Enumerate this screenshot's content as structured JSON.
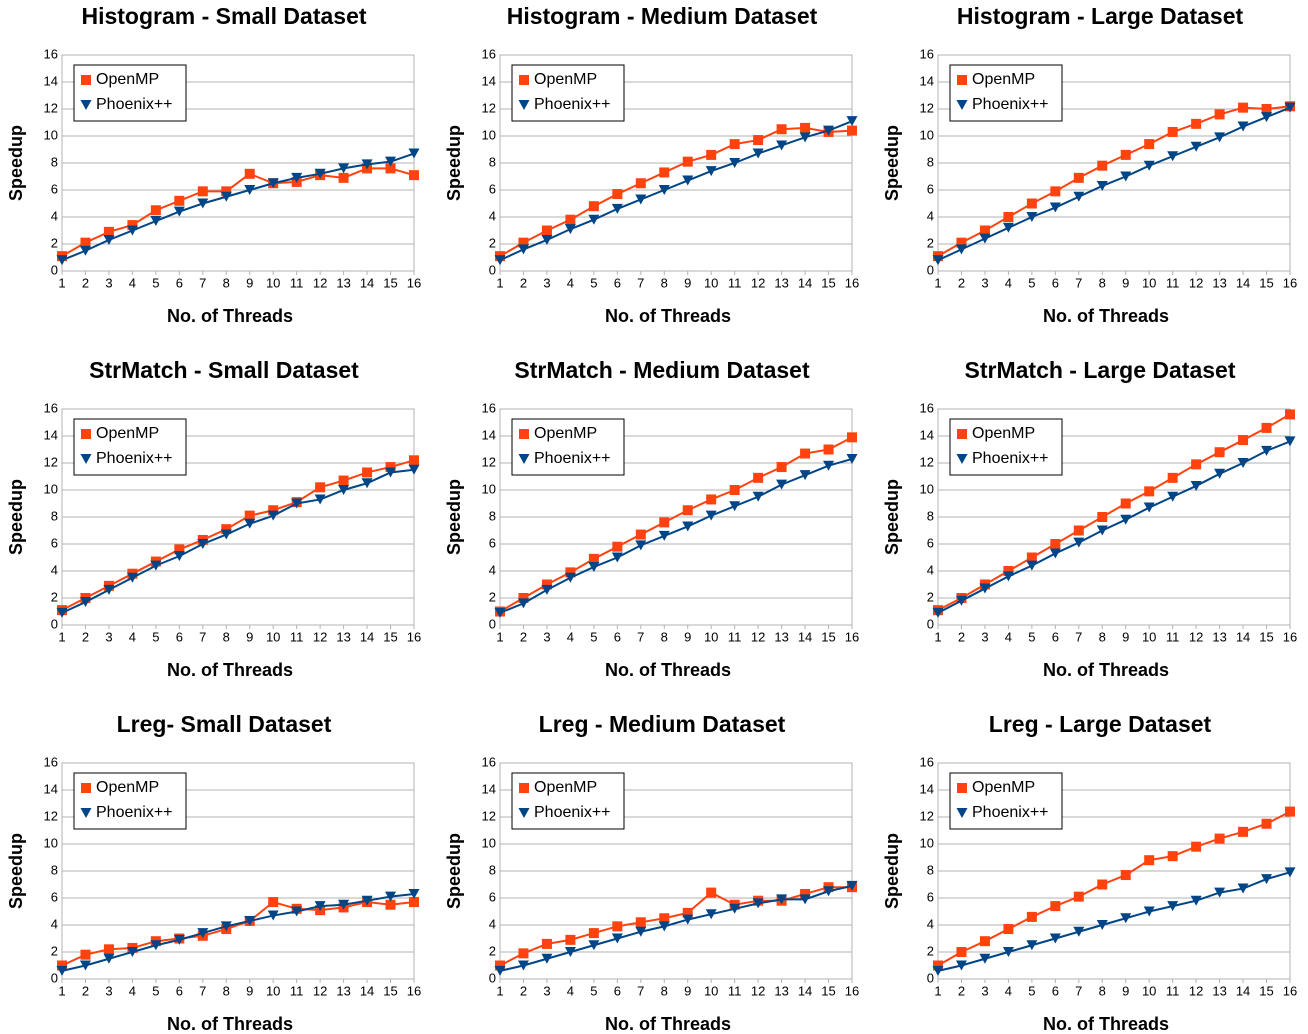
{
  "chart_data": [
    {
      "type": "line",
      "title": "Histogram - Small Dataset",
      "xlabel": "No. of Threads",
      "ylabel": "Speedup",
      "x": [
        1,
        2,
        3,
        4,
        5,
        6,
        7,
        8,
        9,
        10,
        11,
        12,
        13,
        14,
        15,
        16
      ],
      "xlim": [
        1,
        16
      ],
      "xticks": [
        1,
        2,
        3,
        4,
        5,
        6,
        7,
        8,
        9,
        10,
        11,
        12,
        13,
        14,
        15,
        16
      ],
      "ylim": [
        0,
        16
      ],
      "yticks": [
        0,
        2,
        4,
        6,
        8,
        10,
        12,
        14,
        16
      ],
      "grid": true,
      "legend": "upper left",
      "series": [
        {
          "name": "OpenMP",
          "color": "#ff420e",
          "marker": "square",
          "values": [
            1.1,
            2.1,
            2.9,
            3.4,
            4.5,
            5.2,
            5.9,
            5.9,
            7.2,
            6.5,
            6.6,
            7.1,
            6.9,
            7.6,
            7.6,
            7.1
          ]
        },
        {
          "name": "Phoenix++",
          "color": "#004586",
          "marker": "triangle-down",
          "values": [
            0.8,
            1.5,
            2.3,
            3.0,
            3.7,
            4.4,
            5.0,
            5.5,
            6.0,
            6.5,
            6.9,
            7.2,
            7.6,
            7.9,
            8.1,
            8.7
          ]
        }
      ]
    },
    {
      "type": "line",
      "title": "Histogram - Medium Dataset",
      "xlabel": "No. of Threads",
      "ylabel": "Speedup",
      "x": [
        1,
        2,
        3,
        4,
        5,
        6,
        7,
        8,
        9,
        10,
        11,
        12,
        13,
        14,
        15,
        16
      ],
      "xlim": [
        1,
        16
      ],
      "xticks": [
        1,
        2,
        3,
        4,
        5,
        6,
        7,
        8,
        9,
        10,
        11,
        12,
        13,
        14,
        15,
        16
      ],
      "ylim": [
        0,
        16
      ],
      "yticks": [
        0,
        2,
        4,
        6,
        8,
        10,
        12,
        14,
        16
      ],
      "grid": true,
      "legend": "upper left",
      "series": [
        {
          "name": "OpenMP",
          "color": "#ff420e",
          "marker": "square",
          "values": [
            1.1,
            2.1,
            3.0,
            3.8,
            4.8,
            5.7,
            6.5,
            7.3,
            8.1,
            8.6,
            9.4,
            9.7,
            10.5,
            10.6,
            10.3,
            10.4
          ]
        },
        {
          "name": "Phoenix++",
          "color": "#004586",
          "marker": "triangle-down",
          "values": [
            0.8,
            1.6,
            2.3,
            3.1,
            3.8,
            4.6,
            5.3,
            6.0,
            6.7,
            7.4,
            8.0,
            8.7,
            9.3,
            9.9,
            10.4,
            11.1
          ]
        }
      ]
    },
    {
      "type": "line",
      "title": "Histogram - Large Dataset",
      "xlabel": "No. of Threads",
      "ylabel": "Speedup",
      "x": [
        1,
        2,
        3,
        4,
        5,
        6,
        7,
        8,
        9,
        10,
        11,
        12,
        13,
        14,
        15,
        16
      ],
      "xlim": [
        1,
        16
      ],
      "xticks": [
        1,
        2,
        3,
        4,
        5,
        6,
        7,
        8,
        9,
        10,
        11,
        12,
        13,
        14,
        15,
        16
      ],
      "ylim": [
        0,
        16
      ],
      "yticks": [
        0,
        2,
        4,
        6,
        8,
        10,
        12,
        14,
        16
      ],
      "grid": true,
      "legend": "upper left",
      "series": [
        {
          "name": "OpenMP",
          "color": "#ff420e",
          "marker": "square",
          "values": [
            1.1,
            2.1,
            3.0,
            4.0,
            5.0,
            5.9,
            6.9,
            7.8,
            8.6,
            9.4,
            10.3,
            10.9,
            11.6,
            12.1,
            12.0,
            12.2
          ]
        },
        {
          "name": "Phoenix++",
          "color": "#004586",
          "marker": "triangle-down",
          "values": [
            0.8,
            1.6,
            2.4,
            3.2,
            4.0,
            4.7,
            5.5,
            6.3,
            7.0,
            7.8,
            8.5,
            9.2,
            9.9,
            10.7,
            11.4,
            12.1
          ]
        }
      ]
    },
    {
      "type": "line",
      "title": "StrMatch - Small Dataset",
      "xlabel": "No. of Threads",
      "ylabel": "Speedup",
      "x": [
        1,
        2,
        3,
        4,
        5,
        6,
        7,
        8,
        9,
        10,
        11,
        12,
        13,
        14,
        15,
        16
      ],
      "xlim": [
        1,
        16
      ],
      "xticks": [
        1,
        2,
        3,
        4,
        5,
        6,
        7,
        8,
        9,
        10,
        11,
        12,
        13,
        14,
        15,
        16
      ],
      "ylim": [
        0,
        16
      ],
      "yticks": [
        0,
        2,
        4,
        6,
        8,
        10,
        12,
        14,
        16
      ],
      "grid": true,
      "legend": "upper left",
      "series": [
        {
          "name": "OpenMP",
          "color": "#ff420e",
          "marker": "square",
          "values": [
            1.1,
            2.0,
            2.9,
            3.8,
            4.7,
            5.6,
            6.3,
            7.1,
            8.1,
            8.5,
            9.1,
            10.2,
            10.7,
            11.3,
            11.7,
            12.2
          ]
        },
        {
          "name": "Phoenix++",
          "color": "#004586",
          "marker": "triangle-down",
          "values": [
            0.9,
            1.7,
            2.6,
            3.5,
            4.4,
            5.1,
            6.0,
            6.7,
            7.5,
            8.1,
            9.0,
            9.3,
            10.0,
            10.5,
            11.3,
            11.5
          ]
        }
      ]
    },
    {
      "type": "line",
      "title": "StrMatch - Medium Dataset",
      "xlabel": "No. of Threads",
      "ylabel": "Speedup",
      "x": [
        1,
        2,
        3,
        4,
        5,
        6,
        7,
        8,
        9,
        10,
        11,
        12,
        13,
        14,
        15,
        16
      ],
      "xlim": [
        1,
        16
      ],
      "xticks": [
        1,
        2,
        3,
        4,
        5,
        6,
        7,
        8,
        9,
        10,
        11,
        12,
        13,
        14,
        15,
        16
      ],
      "ylim": [
        0,
        16
      ],
      "yticks": [
        0,
        2,
        4,
        6,
        8,
        10,
        12,
        14,
        16
      ],
      "grid": true,
      "legend": "upper left",
      "series": [
        {
          "name": "OpenMP",
          "color": "#ff420e",
          "marker": "square",
          "values": [
            1.0,
            2.0,
            3.0,
            3.9,
            4.9,
            5.8,
            6.7,
            7.6,
            8.5,
            9.3,
            10.0,
            10.9,
            11.7,
            12.7,
            13.0,
            13.9
          ]
        },
        {
          "name": "Phoenix++",
          "color": "#004586",
          "marker": "triangle-down",
          "values": [
            0.9,
            1.6,
            2.6,
            3.5,
            4.3,
            5.0,
            5.9,
            6.6,
            7.3,
            8.1,
            8.8,
            9.5,
            10.4,
            11.1,
            11.8,
            12.3
          ]
        }
      ]
    },
    {
      "type": "line",
      "title": "StrMatch - Large Dataset",
      "xlabel": "No. of Threads",
      "ylabel": "Speedup",
      "x": [
        1,
        2,
        3,
        4,
        5,
        6,
        7,
        8,
        9,
        10,
        11,
        12,
        13,
        14,
        15,
        16
      ],
      "xlim": [
        1,
        16
      ],
      "xticks": [
        1,
        2,
        3,
        4,
        5,
        6,
        7,
        8,
        9,
        10,
        11,
        12,
        13,
        14,
        15,
        16
      ],
      "ylim": [
        0,
        16
      ],
      "yticks": [
        0,
        2,
        4,
        6,
        8,
        10,
        12,
        14,
        16
      ],
      "grid": true,
      "legend": "upper left",
      "series": [
        {
          "name": "OpenMP",
          "color": "#ff420e",
          "marker": "square",
          "values": [
            1.1,
            2.0,
            3.0,
            4.0,
            5.0,
            6.0,
            7.0,
            8.0,
            9.0,
            9.9,
            10.9,
            11.9,
            12.8,
            13.7,
            14.6,
            15.6
          ]
        },
        {
          "name": "Phoenix++",
          "color": "#004586",
          "marker": "triangle-down",
          "values": [
            0.9,
            1.8,
            2.7,
            3.6,
            4.4,
            5.3,
            6.1,
            7.0,
            7.8,
            8.7,
            9.5,
            10.3,
            11.2,
            12.0,
            12.9,
            13.6
          ]
        }
      ]
    },
    {
      "type": "line",
      "title": "Lreg- Small Dataset",
      "xlabel": "No. of Threads",
      "ylabel": "Speedup",
      "x": [
        1,
        2,
        3,
        4,
        5,
        6,
        7,
        8,
        9,
        10,
        11,
        12,
        13,
        14,
        15,
        16
      ],
      "xlim": [
        1,
        16
      ],
      "xticks": [
        1,
        2,
        3,
        4,
        5,
        6,
        7,
        8,
        9,
        10,
        11,
        12,
        13,
        14,
        15,
        16
      ],
      "ylim": [
        0,
        16
      ],
      "yticks": [
        0,
        2,
        4,
        6,
        8,
        10,
        12,
        14,
        16
      ],
      "grid": true,
      "legend": "upper left",
      "series": [
        {
          "name": "OpenMP",
          "color": "#ff420e",
          "marker": "square",
          "values": [
            1.0,
            1.8,
            2.2,
            2.3,
            2.8,
            3.0,
            3.2,
            3.7,
            4.3,
            5.7,
            5.2,
            5.1,
            5.3,
            5.7,
            5.5,
            5.7
          ]
        },
        {
          "name": "Phoenix++",
          "color": "#004586",
          "marker": "triangle-down",
          "values": [
            0.6,
            1.0,
            1.5,
            2.0,
            2.5,
            2.9,
            3.4,
            3.9,
            4.3,
            4.7,
            5.0,
            5.4,
            5.5,
            5.8,
            6.1,
            6.3
          ]
        }
      ]
    },
    {
      "type": "line",
      "title": "Lreg - Medium Dataset",
      "xlabel": "No. of Threads",
      "ylabel": "Speedup",
      "x": [
        1,
        2,
        3,
        4,
        5,
        6,
        7,
        8,
        9,
        10,
        11,
        12,
        13,
        14,
        15,
        16
      ],
      "xlim": [
        1,
        16
      ],
      "xticks": [
        1,
        2,
        3,
        4,
        5,
        6,
        7,
        8,
        9,
        10,
        11,
        12,
        13,
        14,
        15,
        16
      ],
      "ylim": [
        0,
        16
      ],
      "yticks": [
        0,
        2,
        4,
        6,
        8,
        10,
        12,
        14,
        16
      ],
      "grid": true,
      "legend": "upper left",
      "series": [
        {
          "name": "OpenMP",
          "color": "#ff420e",
          "marker": "square",
          "values": [
            1.0,
            1.9,
            2.6,
            2.9,
            3.4,
            3.9,
            4.2,
            4.5,
            4.9,
            6.4,
            5.5,
            5.8,
            5.8,
            6.3,
            6.8,
            6.8
          ]
        },
        {
          "name": "Phoenix++",
          "color": "#004586",
          "marker": "triangle-down",
          "values": [
            0.6,
            1.0,
            1.5,
            2.0,
            2.5,
            3.0,
            3.5,
            3.9,
            4.4,
            4.8,
            5.2,
            5.6,
            5.9,
            5.9,
            6.5,
            6.9
          ]
        }
      ]
    },
    {
      "type": "line",
      "title": "Lreg - Large Dataset",
      "xlabel": "No. of Threads",
      "ylabel": "Speedup",
      "x": [
        1,
        2,
        3,
        4,
        5,
        6,
        7,
        8,
        9,
        10,
        11,
        12,
        13,
        14,
        15,
        16
      ],
      "xlim": [
        1,
        16
      ],
      "xticks": [
        1,
        2,
        3,
        4,
        5,
        6,
        7,
        8,
        9,
        10,
        11,
        12,
        13,
        14,
        15,
        16
      ],
      "ylim": [
        0,
        16
      ],
      "yticks": [
        0,
        2,
        4,
        6,
        8,
        10,
        12,
        14,
        16
      ],
      "grid": true,
      "legend": "upper left",
      "series": [
        {
          "name": "OpenMP",
          "color": "#ff420e",
          "marker": "square",
          "values": [
            1.0,
            2.0,
            2.8,
            3.7,
            4.6,
            5.4,
            6.1,
            7.0,
            7.7,
            8.8,
            9.1,
            9.8,
            10.4,
            10.9,
            11.5,
            12.4
          ]
        },
        {
          "name": "Phoenix++",
          "color": "#004586",
          "marker": "triangle-down",
          "values": [
            0.6,
            1.0,
            1.5,
            2.0,
            2.5,
            3.0,
            3.5,
            4.0,
            4.5,
            5.0,
            5.4,
            5.8,
            6.4,
            6.7,
            7.4,
            7.9
          ]
        }
      ]
    }
  ]
}
